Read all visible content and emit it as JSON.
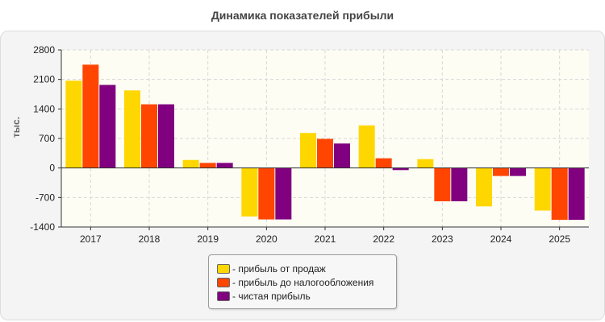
{
  "title": "Динамика показателей прибыли",
  "chart_data": {
    "type": "bar",
    "title": "Динамика показателей прибыли",
    "ylabel": "тыс.",
    "xlabel": "",
    "ylim": [
      -1400,
      2800
    ],
    "yticks": [
      "2800",
      "2100",
      "1400",
      "700",
      "0",
      "-700",
      "-1400"
    ],
    "ytick_values": [
      2800,
      2100,
      1400,
      700,
      0,
      -700,
      -1400
    ],
    "grid": true,
    "legend_position": "bottom",
    "categories": [
      "2017",
      "2018",
      "2019",
      "2020",
      "2021",
      "2022",
      "2023",
      "2024",
      "2025"
    ],
    "series": [
      {
        "name": "- прибыль от продаж",
        "color": "#ffd700",
        "values": [
          2070,
          1840,
          190,
          -1150,
          830,
          1010,
          210,
          -910,
          -1010
        ]
      },
      {
        "name": "- прибыль до налогообложения",
        "color": "#ff4500",
        "values": [
          2450,
          1510,
          120,
          -1220,
          690,
          230,
          -790,
          -190,
          -1230
        ]
      },
      {
        "name": "- чистая прибыль",
        "color": "#800080",
        "values": [
          1970,
          1510,
          120,
          -1220,
          580,
          -50,
          -790,
          -190,
          -1230
        ]
      }
    ]
  }
}
